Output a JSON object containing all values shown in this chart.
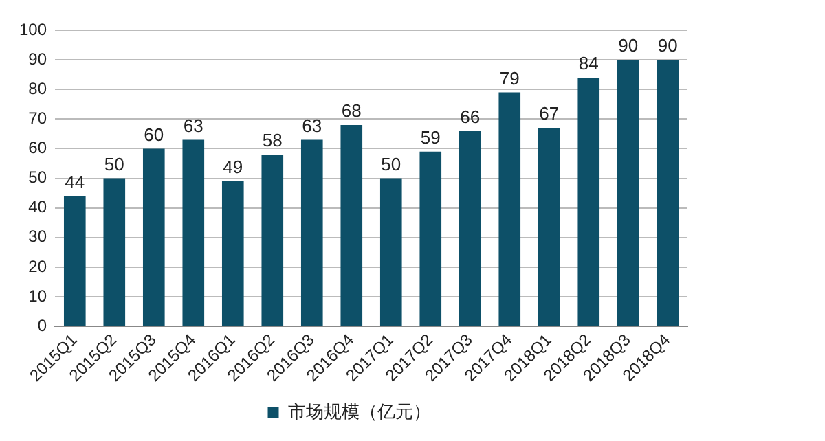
{
  "chart_data": {
    "type": "bar",
    "categories": [
      "2015Q1",
      "2015Q2",
      "2015Q3",
      "2015Q4",
      "2016Q1",
      "2016Q2",
      "2016Q3",
      "2016Q4",
      "2017Q1",
      "2017Q2",
      "2017Q3",
      "2017Q4",
      "2018Q1",
      "2018Q2",
      "2018Q3",
      "2018Q4"
    ],
    "series": [
      {
        "name": "市场规模（亿元）",
        "color": "#0d5068",
        "values": [
          44,
          50,
          60,
          63,
          49,
          58,
          63,
          68,
          50,
          59,
          66,
          79,
          67,
          84,
          90,
          90
        ]
      }
    ],
    "ylim": [
      0,
      100
    ],
    "yticks": [
      0,
      10,
      20,
      30,
      40,
      50,
      60,
      70,
      80,
      90,
      100
    ],
    "grid": "y",
    "legend": "bottom",
    "data_labels": true
  }
}
